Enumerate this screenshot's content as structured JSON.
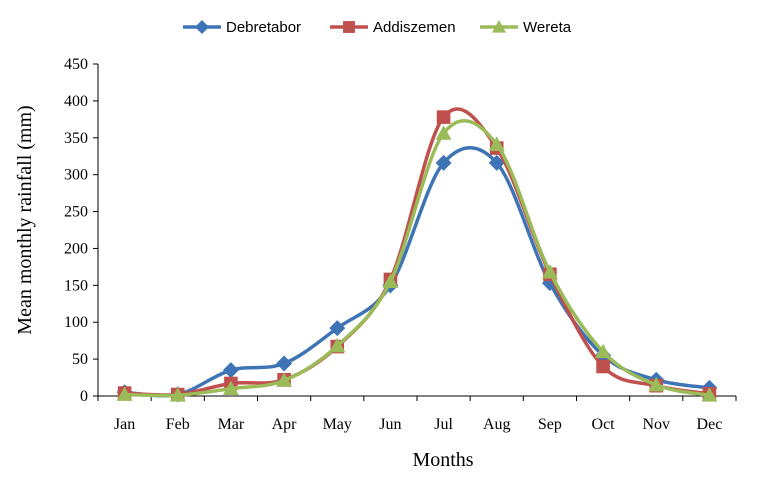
{
  "chart_data": {
    "type": "line",
    "title": "",
    "xlabel": "Months",
    "ylabel": "Mean monthly rainfall (mm)",
    "categories": [
      "Jan",
      "Feb",
      "Mar",
      "Apr",
      "May",
      "Jun",
      "Jul",
      "Aug",
      "Sep",
      "Oct",
      "Nov",
      "Dec"
    ],
    "ylim": [
      0,
      450
    ],
    "yticks": [
      0,
      50,
      100,
      150,
      200,
      250,
      300,
      350,
      400,
      450
    ],
    "grid": false,
    "legend_position": "top-center",
    "series": [
      {
        "name": "Debretabor",
        "color": "#3E74B6",
        "marker": "diamond",
        "values": [
          5,
          2,
          35,
          44,
          92,
          150,
          316,
          316,
          153,
          55,
          22,
          11
        ]
      },
      {
        "name": "Addiszemen",
        "color": "#C0504D",
        "marker": "square",
        "values": [
          4,
          2,
          17,
          22,
          67,
          158,
          378,
          336,
          165,
          40,
          14,
          3
        ]
      },
      {
        "name": "Wereta",
        "color": "#9BBB59",
        "marker": "triangle",
        "values": [
          2,
          1,
          10,
          21,
          68,
          155,
          356,
          341,
          168,
          60,
          15,
          1
        ]
      }
    ]
  }
}
